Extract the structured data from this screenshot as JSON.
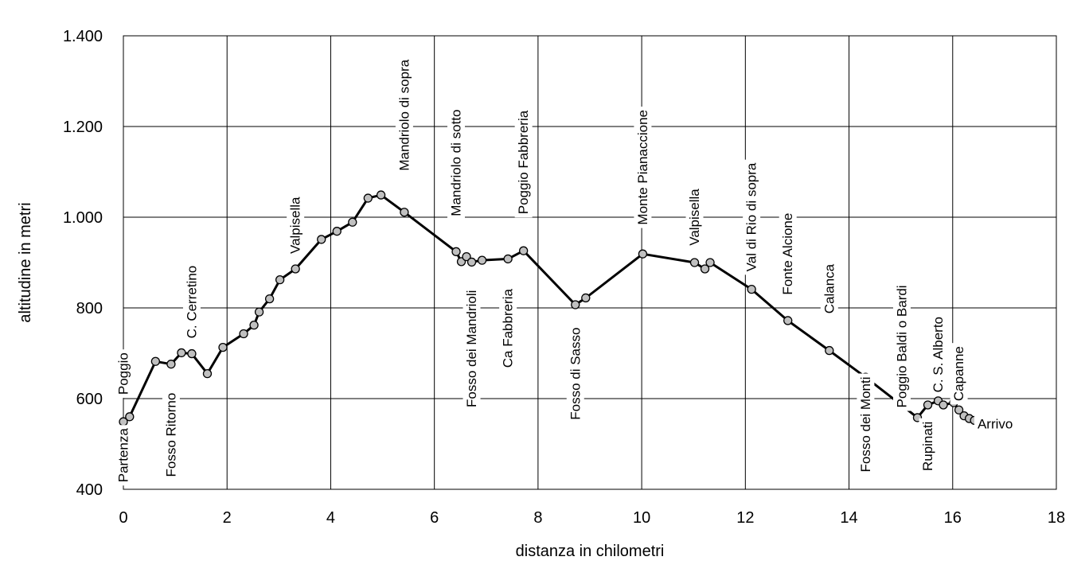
{
  "chart_data": {
    "type": "line",
    "title": "",
    "xlabel": "distanza in chilometri",
    "ylabel": "altitudine  in metri",
    "xlim": [
      0,
      18
    ],
    "ylim": [
      400,
      1400
    ],
    "xticks": [
      0,
      2,
      4,
      6,
      8,
      10,
      12,
      14,
      16,
      18
    ],
    "yticks": [
      400,
      600,
      800,
      1000,
      1200,
      1400
    ],
    "ytick_labels": [
      "400",
      "600",
      "800",
      "1.000",
      "1.200",
      "1.400"
    ],
    "grid": true,
    "series": [
      {
        "x": [
          0.0,
          0.12,
          0.62,
          0.92,
          1.12,
          1.32,
          1.62,
          1.92,
          2.32,
          2.52,
          2.62,
          2.82,
          3.02,
          3.32,
          3.82,
          4.12,
          4.42,
          4.72,
          4.97,
          5.42,
          6.42,
          6.52,
          6.62,
          6.72,
          6.92,
          7.42,
          7.72,
          8.72,
          8.92,
          10.02,
          11.02,
          11.22,
          11.32,
          12.12,
          12.82,
          13.62,
          14.32,
          15.02,
          15.32,
          15.52,
          15.72,
          15.82,
          16.02,
          16.12,
          16.22,
          16.32,
          16.42,
          16.52
        ],
        "y": [
          549,
          560,
          682,
          676,
          701,
          699,
          655,
          713,
          743,
          762,
          791,
          820,
          862,
          886,
          951,
          969,
          989,
          1042,
          1049,
          1011,
          924,
          902,
          913,
          901,
          905,
          908,
          926,
          807,
          822,
          919,
          900,
          886,
          900,
          841,
          772,
          706,
          647,
          585,
          558,
          586,
          595,
          586,
          591,
          575,
          562,
          556,
          552,
          550
        ]
      }
    ],
    "annotations": [
      {
        "text": "Partenza",
        "x": 0.0,
        "y": 475,
        "rotation": 270
      },
      {
        "text": "Poggio",
        "x": 0.0,
        "y": 655,
        "rotation": 270
      },
      {
        "text": "Fosso Ritorno",
        "x": 0.92,
        "y": 520,
        "rotation": 270
      },
      {
        "text": "C. Cerretino",
        "x": 1.32,
        "y": 813,
        "rotation": 270
      },
      {
        "text": "Valpisella",
        "x": 3.32,
        "y": 982,
        "rotation": 270
      },
      {
        "text": "Mandriolo di sopra",
        "x": 5.42,
        "y": 1225,
        "rotation": 270
      },
      {
        "text": "Mandriolo di sotto",
        "x": 6.42,
        "y": 1120,
        "rotation": 270
      },
      {
        "text": "Fosso dei Mandrioli",
        "x": 6.72,
        "y": 710,
        "rotation": 270
      },
      {
        "text": "Poggio Fabbreria",
        "x": 7.72,
        "y": 1121,
        "rotation": 270
      },
      {
        "text": "Ca Fabbreria",
        "x": 7.42,
        "y": 755,
        "rotation": 270
      },
      {
        "text": "Fosso di Sasso",
        "x": 8.72,
        "y": 655,
        "rotation": 270
      },
      {
        "text": "Monte Pianaccione",
        "x": 10.02,
        "y": 1110,
        "rotation": 270
      },
      {
        "text": "Valpisella",
        "x": 11.02,
        "y": 1000,
        "rotation": 270
      },
      {
        "text": "Val di Rio di sopra",
        "x": 12.12,
        "y": 1000,
        "rotation": 270
      },
      {
        "text": "Fonte Alcione",
        "x": 12.82,
        "y": 919,
        "rotation": 270
      },
      {
        "text": "Calanca",
        "x": 13.62,
        "y": 842,
        "rotation": 270
      },
      {
        "text": "Fosso dei Monti",
        "x": 14.32,
        "y": 543,
        "rotation": 270
      },
      {
        "text": "Poggio Baldi o Bardi",
        "x": 15.02,
        "y": 715,
        "rotation": 270
      },
      {
        "text": "C. S. Alberto",
        "x": 15.72,
        "y": 697,
        "rotation": 270
      },
      {
        "text": "Rupinati",
        "x": 15.52,
        "y": 495,
        "rotation": 270
      },
      {
        "text": "Capanne",
        "x": 16.12,
        "y": 655,
        "rotation": 270
      },
      {
        "text": "Arrivo",
        "x": 16.82,
        "y": 544,
        "rotation": 0
      }
    ]
  }
}
